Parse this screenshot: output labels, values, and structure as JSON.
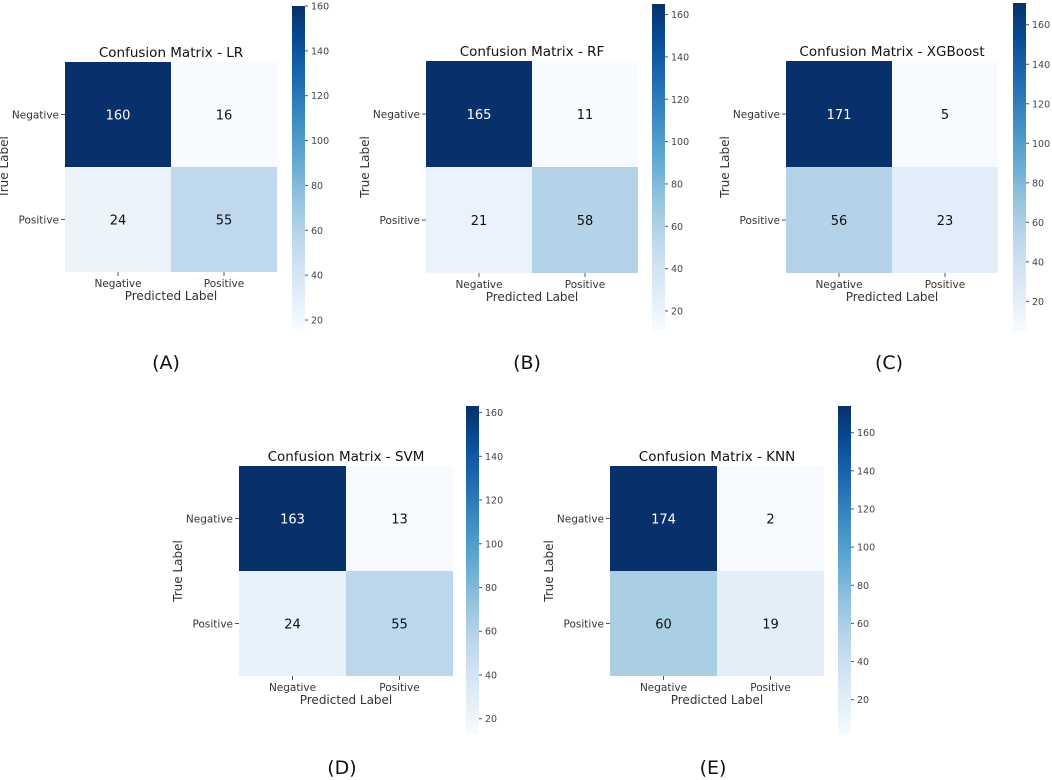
{
  "colors": {
    "cmap_low": "#f7fbff",
    "cmap_mid": "#6baed6",
    "cmap_high": "#08306b",
    "text_dark": "#111111",
    "text_light": "#ffffff"
  },
  "chart_data": [
    {
      "type": "heatmap",
      "panel_label": "(A)",
      "title": "Confusion Matrix - LR",
      "xlabel": "Predicted Label",
      "ylabel": "True Label",
      "row_labels": [
        "Negative",
        "Positive"
      ],
      "col_labels": [
        "Negative",
        "Positive"
      ],
      "values": [
        [
          160,
          16
        ],
        [
          24,
          55
        ]
      ],
      "colorbar": {
        "min": 16,
        "max": 160,
        "ticks": [
          20,
          40,
          60,
          80,
          100,
          120,
          140,
          160
        ]
      }
    },
    {
      "type": "heatmap",
      "panel_label": "(B)",
      "title": "Confusion Matrix - RF",
      "xlabel": "Predicted Label",
      "ylabel": "True Label",
      "row_labels": [
        "Negative",
        "Positive"
      ],
      "col_labels": [
        "Negative",
        "Positive"
      ],
      "values": [
        [
          165,
          11
        ],
        [
          21,
          58
        ]
      ],
      "colorbar": {
        "min": 11,
        "max": 165,
        "ticks": [
          20,
          40,
          60,
          80,
          100,
          120,
          140,
          160
        ]
      }
    },
    {
      "type": "heatmap",
      "panel_label": "(C)",
      "title": "Confusion Matrix - XGBoost",
      "xlabel": "Predicted Label",
      "ylabel": "True Label",
      "row_labels": [
        "Negative",
        "Positive"
      ],
      "col_labels": [
        "Negative",
        "Positive"
      ],
      "values": [
        [
          171,
          5
        ],
        [
          56,
          23
        ]
      ],
      "colorbar": {
        "min": 5,
        "max": 171,
        "ticks": [
          20,
          40,
          60,
          80,
          100,
          120,
          140,
          160
        ]
      }
    },
    {
      "type": "heatmap",
      "panel_label": "(D)",
      "title": "Confusion Matrix - SVM",
      "xlabel": "Predicted Label",
      "ylabel": "True Label",
      "row_labels": [
        "Negative",
        "Positive"
      ],
      "col_labels": [
        "Negative",
        "Positive"
      ],
      "values": [
        [
          163,
          13
        ],
        [
          24,
          55
        ]
      ],
      "colorbar": {
        "min": 13,
        "max": 163,
        "ticks": [
          20,
          40,
          60,
          80,
          100,
          120,
          140,
          160
        ]
      }
    },
    {
      "type": "heatmap",
      "panel_label": "(E)",
      "title": "Confusion Matrix - KNN",
      "xlabel": "Predicted Label",
      "ylabel": "True Label",
      "row_labels": [
        "Negative",
        "Positive"
      ],
      "col_labels": [
        "Negative",
        "Positive"
      ],
      "values": [
        [
          174,
          2
        ],
        [
          60,
          19
        ]
      ],
      "colorbar": {
        "min": 2,
        "max": 174,
        "ticks": [
          20,
          40,
          60,
          80,
          100,
          120,
          140,
          160
        ]
      }
    }
  ]
}
